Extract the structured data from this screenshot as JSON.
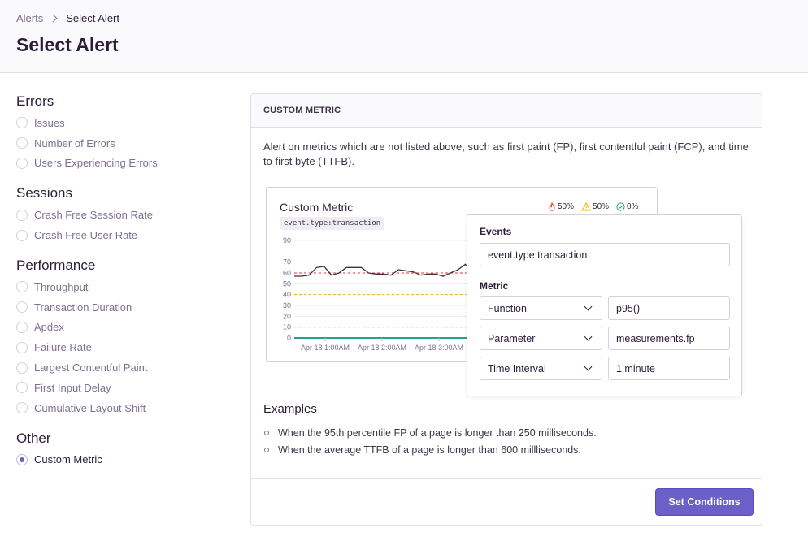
{
  "breadcrumb": {
    "parent": "Alerts",
    "current": "Select Alert"
  },
  "page_title": "Select Alert",
  "sidebar": {
    "groups": [
      {
        "title": "Errors",
        "items": [
          "Issues",
          "Number of Errors",
          "Users Experiencing Errors"
        ]
      },
      {
        "title": "Sessions",
        "items": [
          "Crash Free Session Rate",
          "Crash Free User Rate"
        ]
      },
      {
        "title": "Performance",
        "items": [
          "Throughput",
          "Transaction Duration",
          "Apdex",
          "Failure Rate",
          "Largest Contentful Paint",
          "First Input Delay",
          "Cumulative Layout Shift"
        ]
      },
      {
        "title": "Other",
        "items": [
          "Custom Metric"
        ]
      }
    ],
    "selected": "Custom Metric"
  },
  "panel": {
    "header": "CUSTOM METRIC",
    "description": "Alert on metrics which are not listed above, such as first paint (FP), first contentful paint (FCP), and time to first byte (TTFB).",
    "examples_title": "Examples",
    "examples": [
      "When the 95th percentile FP of a page is longer than 250 milliseconds.",
      "When the average TTFB of a page is longer than 600 millliseconds."
    ],
    "submit_label": "Set Conditions"
  },
  "chart": {
    "title": "Custom Metric",
    "query": "event.type:transaction",
    "badges": {
      "critical": "50%",
      "warning": "50%",
      "resolved": "0%"
    }
  },
  "chart_data": {
    "type": "line",
    "title": "Custom Metric",
    "ylim": [
      0,
      90
    ],
    "yticks": [
      "90",
      "70",
      "60",
      "50",
      "40",
      "30",
      "20",
      "10",
      "0"
    ],
    "xtick_labels": [
      "Apr 18 1:00AM",
      "Apr 18 2:00AM",
      "Apr 18 3:00AM"
    ],
    "series": [
      {
        "values": [
          57,
          57,
          58,
          65,
          66,
          58,
          60,
          65,
          65,
          65,
          60,
          59,
          59,
          58,
          63,
          62,
          61,
          58,
          59,
          59,
          57,
          60,
          63,
          68,
          59,
          58,
          57
        ]
      }
    ],
    "thresholds": [
      {
        "level": "critical",
        "value": 60,
        "color": "#e03e2f"
      },
      {
        "level": "warning",
        "value": 40,
        "color": "#f5b000"
      },
      {
        "level": "resolved",
        "value": 10,
        "color": "#2ba185"
      }
    ],
    "baseline_color": "#2ba185",
    "line_color": "#3e3446",
    "grid": true
  },
  "popover": {
    "events_label": "Events",
    "events_value": "event.type:transaction",
    "metric_label": "Metric",
    "function_label": "Function",
    "function_value": "p95()",
    "parameter_label": "Parameter",
    "parameter_value": "measurements.fp",
    "interval_label": "Time Interval",
    "interval_value": "1 minute"
  },
  "colors": {
    "accent": "#6c5fc7",
    "text": "#2b1d38",
    "muted": "#80708f",
    "border": "#e2dee6"
  }
}
